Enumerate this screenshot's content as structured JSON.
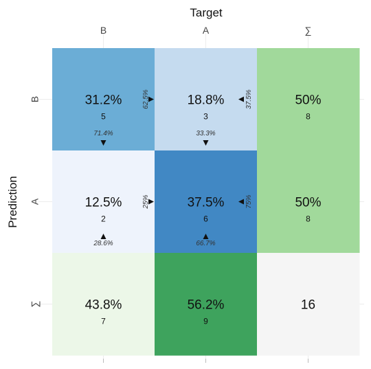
{
  "chart_data": {
    "type": "heatmap",
    "title": "",
    "xlabel": "Target",
    "ylabel": "Prediction",
    "x_categories": [
      "B",
      "A",
      "∑"
    ],
    "y_categories": [
      "B",
      "A",
      "∑"
    ],
    "cells": [
      {
        "row": "B",
        "col": "B",
        "percent": "31.2%",
        "count": "5",
        "row_pct": "62.5%",
        "col_pct": "71.4%",
        "color": "#6badd6"
      },
      {
        "row": "B",
        "col": "A",
        "percent": "18.8%",
        "count": "3",
        "row_pct": "37.5%",
        "col_pct": "33.3%",
        "color": "#c5dbef"
      },
      {
        "row": "B",
        "col": "∑",
        "percent": "50%",
        "count": "8",
        "color": "#a1d99b"
      },
      {
        "row": "A",
        "col": "B",
        "percent": "12.5%",
        "count": "2",
        "row_pct": "25%",
        "col_pct": "28.6%",
        "color": "#eef3fc"
      },
      {
        "row": "A",
        "col": "A",
        "percent": "37.5%",
        "count": "6",
        "row_pct": "75%",
        "col_pct": "66.7%",
        "color": "#4188c4"
      },
      {
        "row": "A",
        "col": "∑",
        "percent": "50%",
        "count": "8",
        "color": "#a1d99b"
      },
      {
        "row": "∑",
        "col": "B",
        "percent": "43.8%",
        "count": "7",
        "color": "#ecf7e8"
      },
      {
        "row": "∑",
        "col": "A",
        "percent": "56.2%",
        "count": "9",
        "color": "#3ea35d"
      },
      {
        "row": "∑",
        "col": "∑",
        "percent": "",
        "count": "16",
        "color": "#f5f5f5"
      }
    ]
  }
}
